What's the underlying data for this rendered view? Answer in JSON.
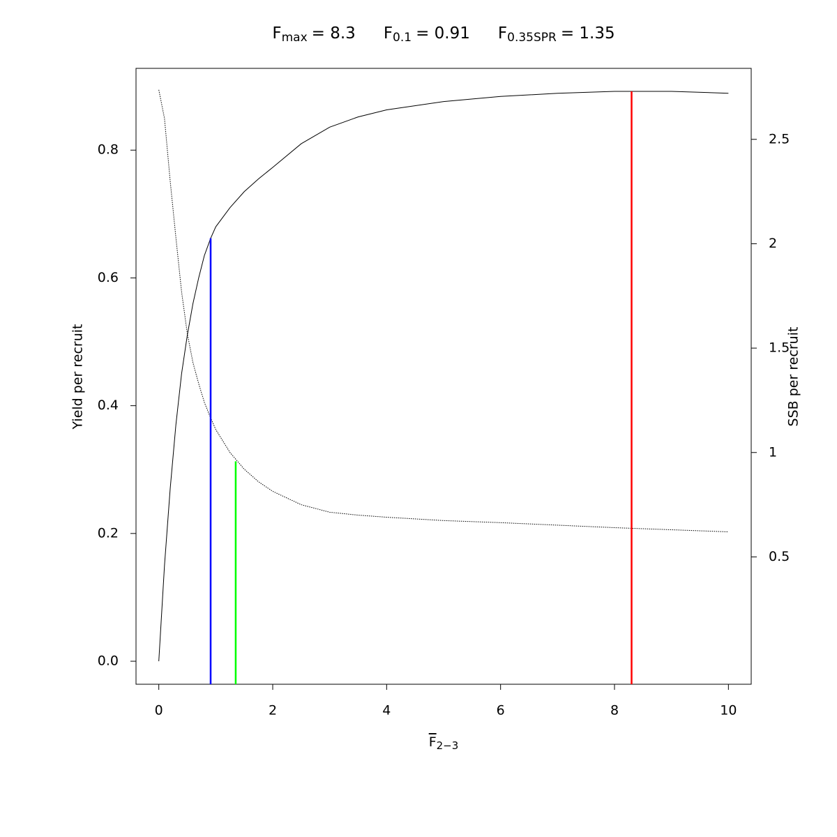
{
  "chart_data": {
    "type": "line",
    "title_parts": [
      {
        "symbol": "F",
        "sub": "max",
        "text": "= 8.3"
      },
      {
        "symbol": "F",
        "sub": "0.1",
        "text": "= 0.91"
      },
      {
        "symbol": "F",
        "sub": "0.35SPR",
        "text": "= 1.35"
      }
    ],
    "x_label": {
      "symbol": "F",
      "sub": "2−3"
    },
    "y_label": "Yield per recruit",
    "y2_label": "SSB per recruit",
    "x": [
      0,
      0.1,
      0.2,
      0.3,
      0.4,
      0.5,
      0.6,
      0.7,
      0.8,
      0.91,
      1.0,
      1.25,
      1.5,
      1.75,
      2,
      2.5,
      3,
      3.5,
      4,
      5,
      6,
      7,
      8,
      9,
      10
    ],
    "series": [
      {
        "color": "#000000",
        "dash": "solid",
        "axis": "y",
        "values": [
          0,
          0.15,
          0.27,
          0.37,
          0.45,
          0.51,
          0.56,
          0.6,
          0.635,
          0.662,
          0.68,
          0.71,
          0.735,
          0.755,
          0.773,
          0.81,
          0.836,
          0.852,
          0.863,
          0.876,
          0.884,
          0.889,
          0.892,
          0.892,
          0.889
        ]
      },
      {
        "color": "#000000",
        "dash": "dotted",
        "axis": "y2",
        "values": [
          2.737,
          2.6,
          2.3,
          2.03,
          1.77,
          1.57,
          1.43,
          1.33,
          1.24,
          1.166,
          1.11,
          1.0,
          0.92,
          0.86,
          0.814,
          0.75,
          0.714,
          0.7,
          0.69,
          0.674,
          0.664,
          0.652,
          0.64,
          0.63,
          0.62
        ]
      }
    ],
    "reference_lines": [
      {
        "x": 0.91,
        "y": 0.662,
        "axis": "y",
        "color": "#0000ff"
      },
      {
        "x": 1.35,
        "y": 0.958,
        "axis": "y2",
        "color": "#00ff00"
      },
      {
        "x": 8.3,
        "y": 0.892,
        "axis": "y",
        "color": "#ff0000"
      }
    ],
    "xlim": [
      -0.4,
      10.4
    ],
    "ylim": [
      -0.036,
      0.928
    ],
    "y2lim": [
      -0.11,
      2.84
    ],
    "xticks": [
      0,
      2,
      4,
      6,
      8,
      10
    ],
    "yticks": [
      {
        "value": 0,
        "label": "0.0"
      },
      0.2,
      0.4,
      0.6,
      0.8
    ],
    "y2ticks": [
      0.5,
      1,
      1.5,
      2,
      2.5
    ]
  }
}
